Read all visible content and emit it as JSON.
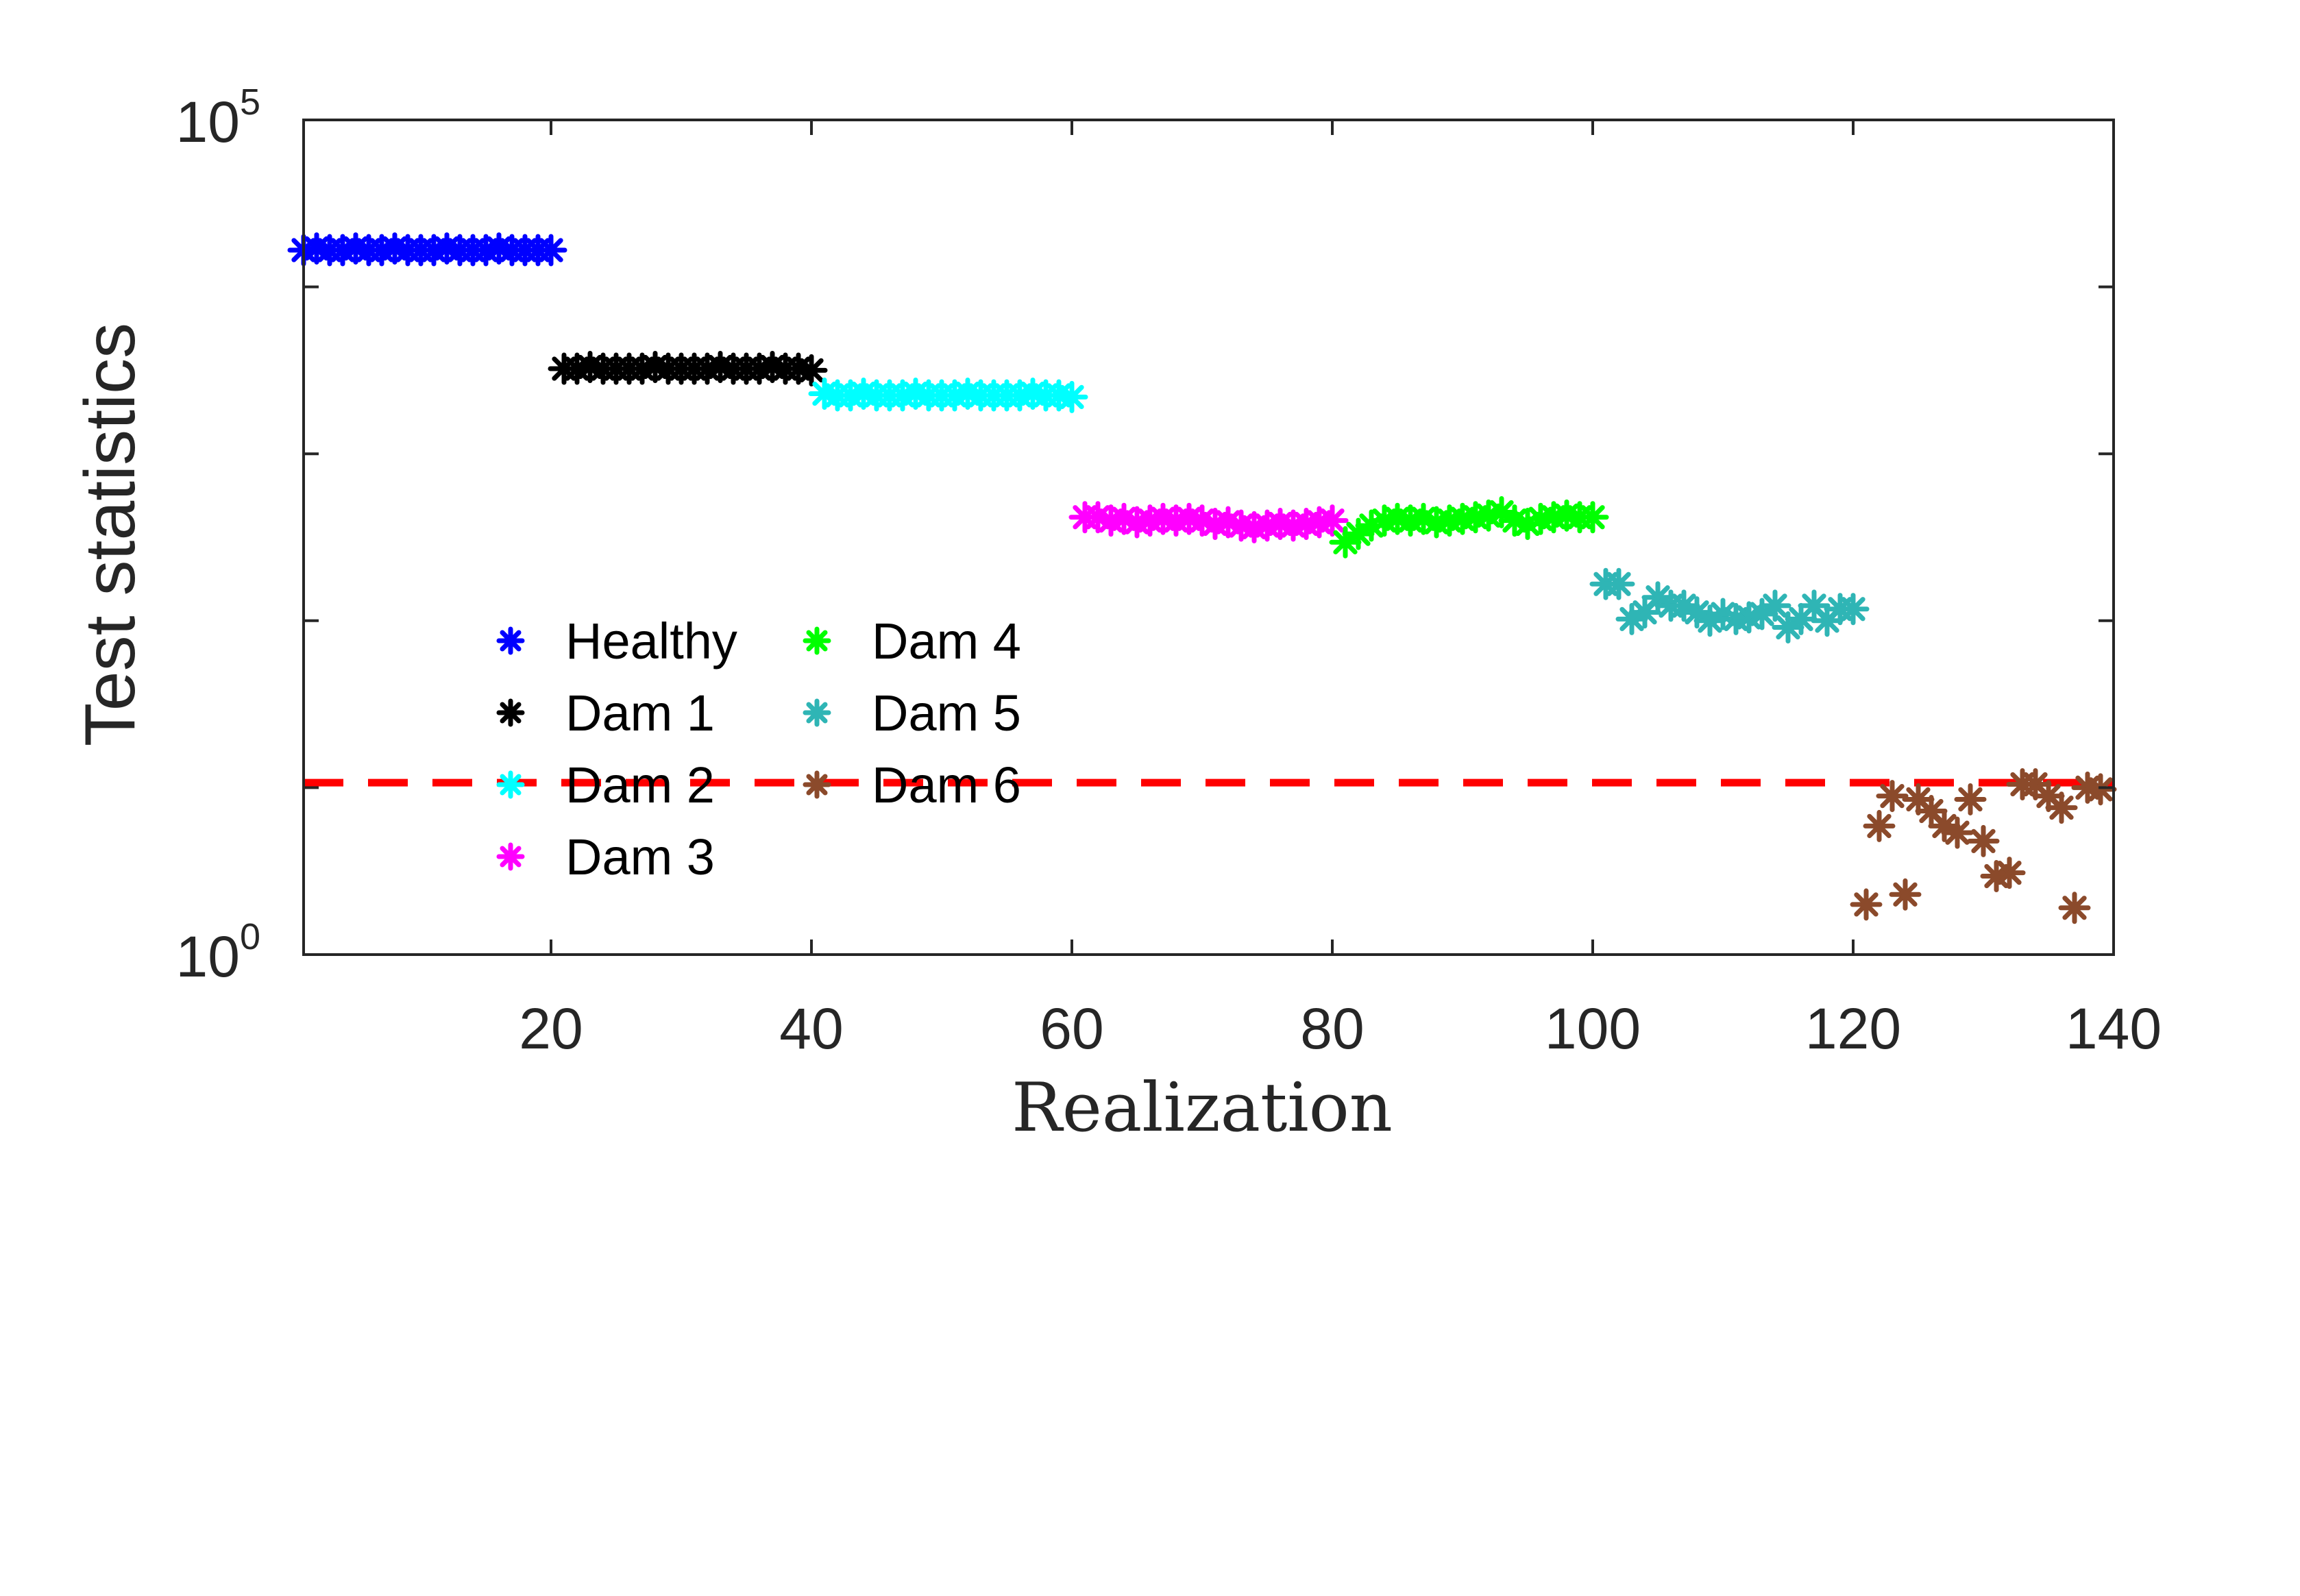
{
  "chart_data": {
    "type": "scatter",
    "title": "",
    "xlabel": "Realization",
    "ylabel": "Test statistics",
    "xlim": [
      1,
      140
    ],
    "ylim_log10": [
      0,
      5
    ],
    "yscale": "log",
    "x_ticks": [
      20,
      40,
      60,
      80,
      100,
      120,
      140
    ],
    "x_tick_labels": [
      "20",
      "40",
      "60",
      "80",
      "100",
      "120",
      "140"
    ],
    "y_tick_labels": [
      {
        "base": "10",
        "exp": "0",
        "log10": 0
      },
      {
        "base": "10",
        "exp": "5",
        "log10": 5
      }
    ],
    "y_minor_ticks_log10": [
      1,
      2,
      3,
      4
    ],
    "threshold": {
      "log10_value": 1.03,
      "color": "#ff0000",
      "style": "dashed"
    },
    "legend_position": "center-left",
    "series": [
      {
        "name": "Healthy",
        "color": "#0000ff",
        "x_start": 1,
        "log10_values": [
          4.22,
          4.23,
          4.22,
          4.22,
          4.23,
          4.22,
          4.22,
          4.23,
          4.22,
          4.22,
          4.22,
          4.23,
          4.22,
          4.22,
          4.22,
          4.23,
          4.22,
          4.22,
          4.22,
          4.22
        ]
      },
      {
        "name": "Dam 1",
        "color": "#000000",
        "x_start": 21,
        "log10_values": [
          3.51,
          3.51,
          3.52,
          3.51,
          3.51,
          3.51,
          3.51,
          3.52,
          3.51,
          3.51,
          3.51,
          3.51,
          3.52,
          3.51,
          3.51,
          3.51,
          3.52,
          3.51,
          3.51,
          3.5
        ]
      },
      {
        "name": "Dam 2",
        "color": "#00ffff",
        "x_start": 41,
        "log10_values": [
          3.36,
          3.35,
          3.35,
          3.36,
          3.35,
          3.35,
          3.35,
          3.36,
          3.35,
          3.35,
          3.35,
          3.36,
          3.35,
          3.35,
          3.35,
          3.35,
          3.36,
          3.35,
          3.35,
          3.34
        ]
      },
      {
        "name": "Dam 3",
        "color": "#ff00ff",
        "x_start": 61,
        "log10_values": [
          2.62,
          2.62,
          2.6,
          2.61,
          2.59,
          2.6,
          2.61,
          2.6,
          2.61,
          2.6,
          2.58,
          2.59,
          2.57,
          2.56,
          2.57,
          2.58,
          2.57,
          2.58,
          2.59,
          2.6
        ]
      },
      {
        "name": "Dam 4",
        "color": "#00ff00",
        "x_start": 81,
        "log10_values": [
          2.47,
          2.52,
          2.57,
          2.6,
          2.61,
          2.6,
          2.61,
          2.59,
          2.6,
          2.61,
          2.62,
          2.63,
          2.65,
          2.6,
          2.58,
          2.61,
          2.62,
          2.63,
          2.62,
          2.62
        ]
      },
      {
        "name": "Dam 5",
        "color": "#2fb5b5",
        "x_start": 101,
        "log10_values": [
          2.22,
          2.22,
          2.01,
          2.05,
          2.14,
          2.09,
          2.09,
          2.05,
          2.0,
          2.04,
          2.01,
          2.02,
          2.04,
          2.09,
          1.96,
          2.01,
          2.09,
          2.0,
          2.07,
          2.07
        ]
      },
      {
        "name": "Dam 6",
        "color": "#8b4a2b",
        "x_start": 121,
        "log10_values": [
          0.3,
          0.77,
          0.95,
          0.36,
          0.93,
          0.86,
          0.77,
          0.73,
          0.93,
          0.68,
          0.47,
          0.49,
          1.02,
          1.02,
          0.95,
          0.88,
          0.28,
          1.0,
          0.99
        ]
      }
    ]
  }
}
